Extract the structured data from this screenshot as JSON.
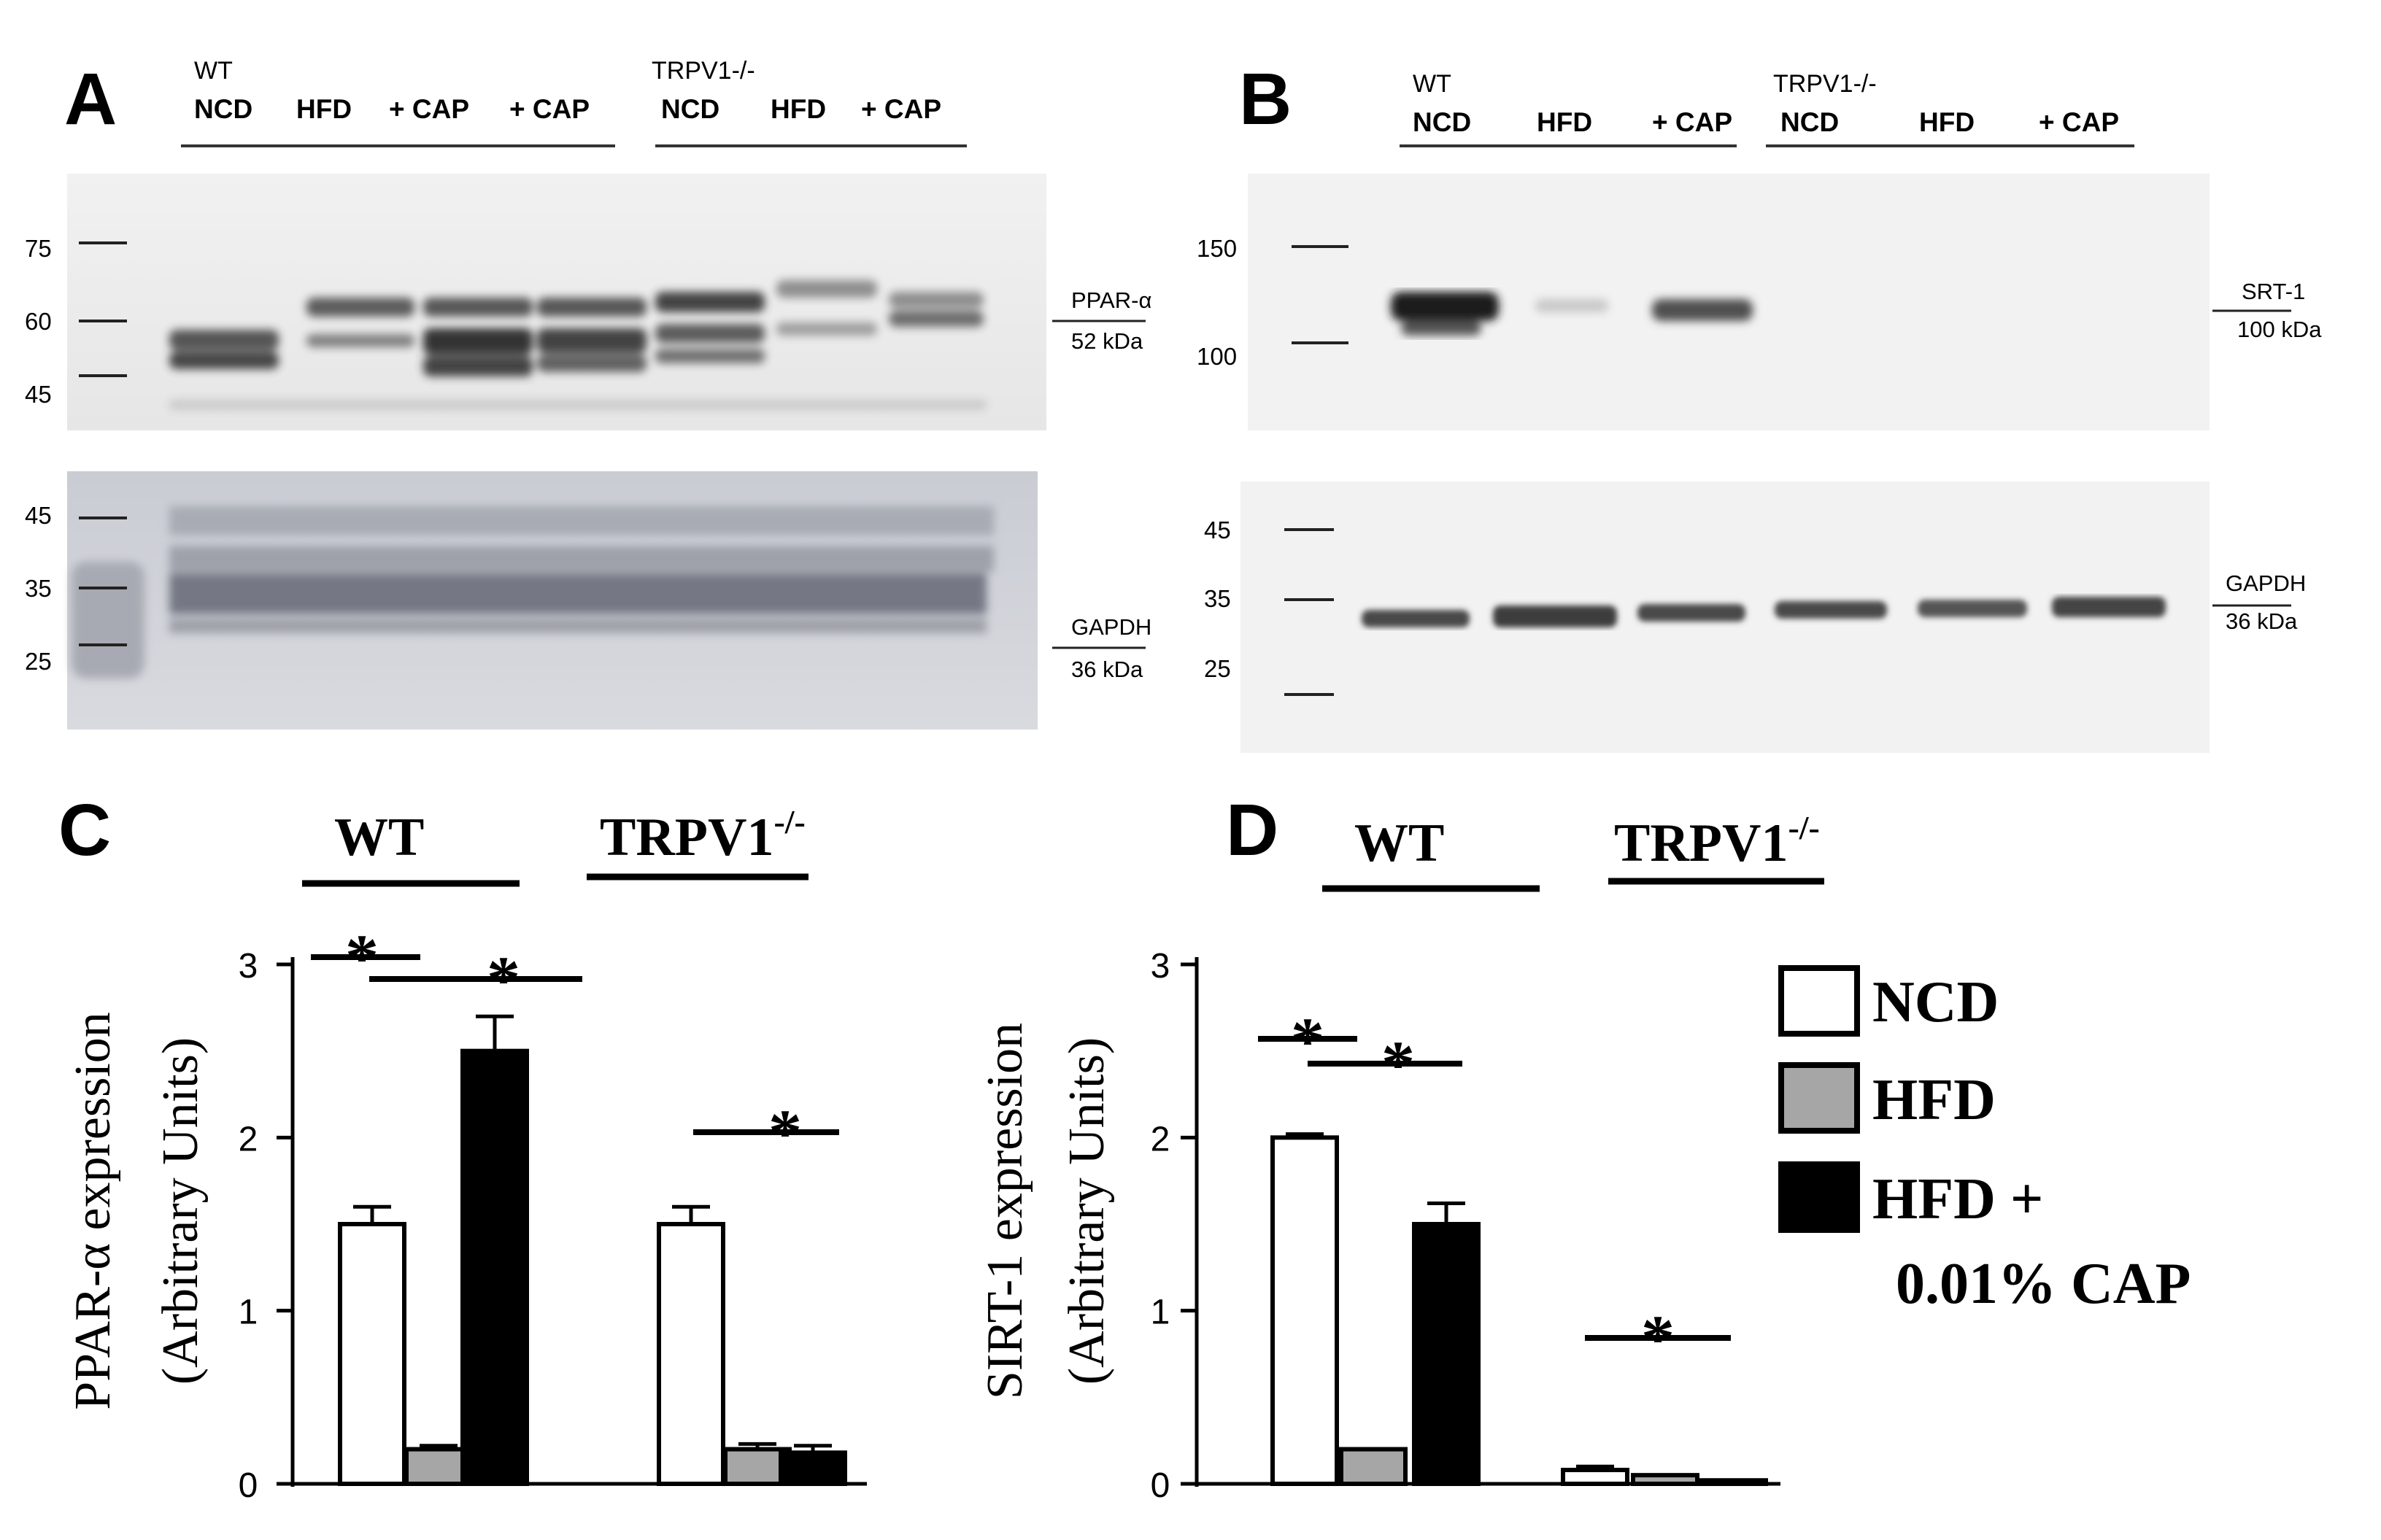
{
  "panels": {
    "A": {
      "letter": "A",
      "header_groups": [
        {
          "name": "WT",
          "lanes": [
            "NCD",
            "HFD",
            "+ CAP",
            "+ CAP"
          ]
        },
        {
          "name": "TRPV1-/-",
          "lanes": [
            "NCD",
            "HFD",
            "+ CAP"
          ]
        }
      ],
      "top_blot": {
        "markers": [
          "75",
          "60",
          "45"
        ],
        "label": "PPAR-α",
        "kda": "52 kDa"
      },
      "bottom_blot": {
        "markers": [
          "45",
          "35",
          "25"
        ],
        "label": "GAPDH",
        "kda": "36 kDa"
      }
    },
    "B": {
      "letter": "B",
      "header_groups": [
        {
          "name": "WT",
          "lanes": [
            "NCD",
            "HFD",
            "+ CAP"
          ]
        },
        {
          "name": "TRPV1-/-",
          "lanes": [
            "NCD",
            "HFD",
            "+ CAP"
          ]
        }
      ],
      "top_blot": {
        "markers": [
          "150",
          "100"
        ],
        "label": "SRT-1",
        "kda": "100 kDa"
      },
      "bottom_blot": {
        "markers": [
          "45",
          "35",
          "25"
        ],
        "label": "GAPDH",
        "kda": "36 kDa"
      }
    }
  },
  "chart_data": [
    {
      "panel": "C",
      "type": "bar",
      "ylabel_line1": "PPAR-α expression",
      "ylabel_line2": "(Arbitrary Units)",
      "ylim": [
        0,
        3
      ],
      "yticks": [
        "0",
        "1",
        "2",
        "3"
      ],
      "groups": [
        {
          "name": "WT",
          "sup": ""
        },
        {
          "name": "TRPV1",
          "sup": "-/-"
        }
      ],
      "series": [
        {
          "name": "NCD",
          "values": [
            1.5,
            1.5
          ],
          "errors": [
            0.1,
            0.1
          ],
          "color": "#ffffff"
        },
        {
          "name": "HFD",
          "values": [
            0.2,
            0.2
          ],
          "errors": [
            0.02,
            0.03
          ],
          "color": "#a6a6a6"
        },
        {
          "name": "HFD + 0.01% CAP",
          "values": [
            2.5,
            0.18
          ],
          "errors": [
            0.2,
            0.04
          ],
          "color": "#000000"
        }
      ],
      "significance": [
        "*",
        "*",
        "*"
      ]
    },
    {
      "panel": "D",
      "type": "bar",
      "ylabel_line1": "SIRT-1 expression",
      "ylabel_line2": "(Arbitrary Units)",
      "ylim": [
        0,
        3
      ],
      "yticks": [
        "0",
        "1",
        "2",
        "3"
      ],
      "groups": [
        {
          "name": "WT",
          "sup": ""
        },
        {
          "name": "TRPV1",
          "sup": "-/-"
        }
      ],
      "series": [
        {
          "name": "NCD",
          "values": [
            2.0,
            0.08
          ],
          "errors": [
            0.02,
            0.02
          ],
          "color": "#ffffff"
        },
        {
          "name": "HFD",
          "values": [
            0.2,
            0.05
          ],
          "errors": [
            0.0,
            0.0
          ],
          "color": "#a6a6a6"
        },
        {
          "name": "HFD + 0.01% CAP",
          "values": [
            1.5,
            0.02
          ],
          "errors": [
            0.12,
            0.0
          ],
          "color": "#000000"
        }
      ],
      "significance": [
        "*",
        "*",
        "*"
      ]
    }
  ],
  "legend": {
    "items": [
      {
        "label": "NCD",
        "color": "#ffffff"
      },
      {
        "label": "HFD",
        "color": "#a6a6a6"
      },
      {
        "label": "HFD +",
        "color": "#000000"
      }
    ],
    "extra_line": "0.01% CAP"
  }
}
